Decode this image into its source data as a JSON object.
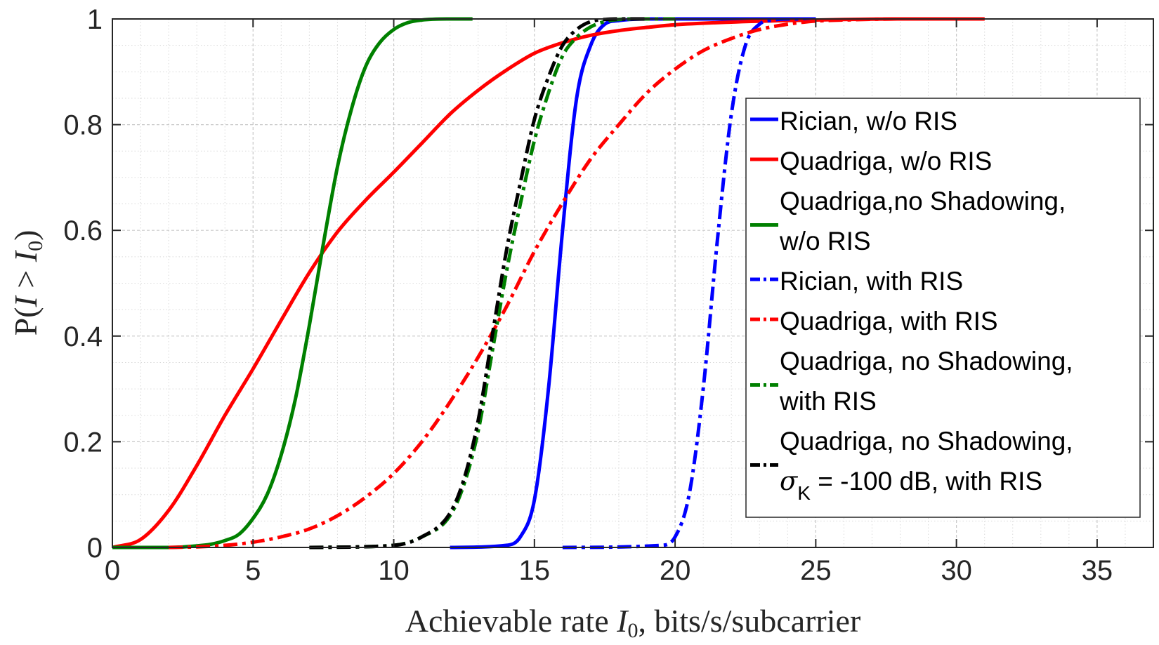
{
  "chart_data": {
    "type": "line",
    "title": "",
    "xlabel": "Achievable rate I₀, bits/s/subcarrier",
    "xlabel_parts": {
      "prefix": "Achievable rate ",
      "var": "I",
      "sub": "0",
      "suffix": ", bits/s/subcarrier"
    },
    "ylabel": "P(I > I₀)",
    "ylabel_parts": {
      "prefix": "P(",
      "var1": "I",
      "op": " > ",
      "var2": "I",
      "sub": "0",
      "suffix": ")"
    },
    "xlim": [
      0,
      37
    ],
    "ylim": [
      0,
      1
    ],
    "xticks": [
      0,
      5,
      10,
      15,
      20,
      25,
      30,
      35
    ],
    "yticks": [
      0,
      0.2,
      0.4,
      0.6,
      0.8,
      1
    ],
    "ytick_labels": [
      "0",
      "0.2",
      "0.4",
      "0.6",
      "0.8",
      "1"
    ],
    "grid": "major and minor",
    "legend_position": "right",
    "series": [
      {
        "name": "Rician, w/o RIS",
        "color": "#0000ff",
        "dash": "solid",
        "x": [
          12,
          14,
          14.5,
          15,
          15.5,
          16,
          16.5,
          17,
          17.5,
          18,
          19,
          20,
          21,
          22,
          23,
          24,
          25
        ],
        "y": [
          0,
          0.004,
          0.02,
          0.09,
          0.3,
          0.6,
          0.85,
          0.95,
          0.99,
          0.997,
          1,
          1,
          1,
          1,
          1,
          1,
          1
        ]
      },
      {
        "name": "Quadriga, w/o RIS",
        "color": "#ff0000",
        "dash": "solid",
        "x": [
          0,
          1,
          2,
          3,
          4,
          5,
          6,
          7,
          8,
          9,
          10,
          11,
          12,
          13,
          14,
          15,
          16,
          17,
          18,
          19,
          20,
          22,
          24,
          26,
          28,
          31
        ],
        "y": [
          0,
          0.015,
          0.07,
          0.155,
          0.25,
          0.338,
          0.43,
          0.52,
          0.597,
          0.657,
          0.71,
          0.765,
          0.82,
          0.865,
          0.903,
          0.935,
          0.955,
          0.969,
          0.978,
          0.984,
          0.989,
          0.994,
          0.997,
          0.999,
          1,
          1
        ]
      },
      {
        "name": "Quadriga,no Shadowing,\nw/o RIS",
        "color": "#008000",
        "dash": "solid",
        "x": [
          0,
          2,
          3,
          3.5,
          4,
          4.5,
          5,
          5.5,
          6,
          6.5,
          7,
          7.5,
          8,
          8.5,
          9,
          9.5,
          10,
          10.5,
          11,
          12,
          12.8
        ],
        "y": [
          0,
          0,
          0.003,
          0.006,
          0.013,
          0.025,
          0.055,
          0.1,
          0.175,
          0.28,
          0.42,
          0.575,
          0.72,
          0.83,
          0.91,
          0.955,
          0.98,
          0.993,
          0.998,
          1,
          1
        ]
      },
      {
        "name": "Rician, with RIS",
        "color": "#0000ff",
        "dash": "dashdot",
        "x": [
          16,
          19.5,
          20,
          20.5,
          21,
          21.5,
          22,
          22.5,
          23,
          23.5,
          24,
          24.5,
          25
        ],
        "y": [
          0,
          0.004,
          0.02,
          0.1,
          0.3,
          0.58,
          0.82,
          0.95,
          0.99,
          0.998,
          1,
          1,
          1
        ]
      },
      {
        "name": "Quadriga, with RIS",
        "color": "#ff0000",
        "dash": "dashdot",
        "x": [
          2,
          3,
          4,
          5,
          6,
          7,
          8,
          9,
          10,
          11,
          12,
          13,
          14,
          15,
          16,
          17,
          18,
          19,
          20,
          21,
          22,
          23,
          24,
          25,
          26,
          28,
          31
        ],
        "y": [
          0,
          0.001,
          0.004,
          0.01,
          0.02,
          0.035,
          0.06,
          0.095,
          0.14,
          0.2,
          0.275,
          0.36,
          0.455,
          0.56,
          0.652,
          0.735,
          0.8,
          0.86,
          0.905,
          0.94,
          0.963,
          0.98,
          0.99,
          0.996,
          0.998,
          1,
          1
        ]
      },
      {
        "name": "Quadriga, no Shadowing,\nwith RIS",
        "color": "#008000",
        "dash": "dashdot",
        "x": [
          7,
          10,
          11,
          12,
          12.5,
          13,
          13.5,
          14,
          14.5,
          15,
          15.5,
          16,
          16.5,
          17,
          17.5,
          18,
          18.5,
          19,
          20
        ],
        "y": [
          0,
          0.004,
          0.02,
          0.06,
          0.12,
          0.22,
          0.37,
          0.52,
          0.65,
          0.77,
          0.86,
          0.93,
          0.965,
          0.985,
          0.995,
          0.999,
          1,
          1,
          1
        ]
      },
      {
        "name": "Quadriga, no Shadowing,\nσ_K = -100 dB, with RIS",
        "color": "#000000",
        "dash": "dashdot",
        "x": [
          7,
          10,
          11,
          12,
          12.5,
          13,
          13.5,
          14,
          14.5,
          15,
          15.5,
          16,
          16.5,
          17,
          17.5,
          18,
          18.5,
          19
        ],
        "y": [
          0,
          0.004,
          0.02,
          0.065,
          0.13,
          0.24,
          0.4,
          0.56,
          0.69,
          0.81,
          0.89,
          0.95,
          0.98,
          0.995,
          0.999,
          1,
          1,
          1
        ]
      }
    ],
    "legend_entries": [
      {
        "lines": [
          "Rician, w/o RIS"
        ]
      },
      {
        "lines": [
          "Quadriga, w/o RIS"
        ]
      },
      {
        "lines": [
          "Quadriga,no Shadowing,",
          "w/o RIS"
        ]
      },
      {
        "lines": [
          "Rician, with RIS"
        ]
      },
      {
        "lines": [
          "Quadriga, with RIS"
        ]
      },
      {
        "lines": [
          "Quadriga, no Shadowing,",
          "with RIS"
        ]
      },
      {
        "lines": [
          "Quadriga, no Shadowing,",
          "σK = -100 dB, with RIS"
        ],
        "math": {
          "greek": "σ",
          "sub": "K",
          "rest": " = -100 dB, with RIS"
        }
      }
    ]
  }
}
